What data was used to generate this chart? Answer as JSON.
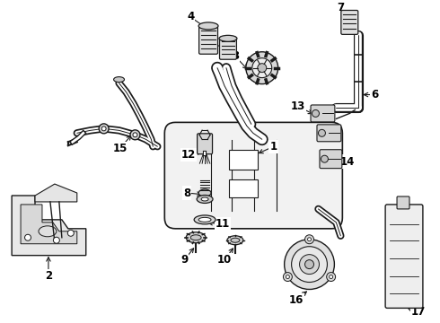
{
  "background_color": "#ffffff",
  "line_color": "#1a1a1a",
  "fig_w": 4.9,
  "fig_h": 3.6,
  "dpi": 100,
  "labels": {
    "1": [
      295,
      178,
      305,
      165
    ],
    "2": [
      72,
      295,
      72,
      308
    ],
    "3": [
      292,
      72,
      278,
      60
    ],
    "4": [
      222,
      25,
      210,
      18
    ],
    "5": [
      240,
      62,
      228,
      55
    ],
    "6": [
      403,
      105,
      415,
      105
    ],
    "7": [
      393,
      18,
      380,
      10
    ],
    "8": [
      228,
      220,
      215,
      215
    ],
    "9": [
      210,
      308,
      198,
      320
    ],
    "10": [
      258,
      308,
      248,
      320
    ],
    "11": [
      232,
      262,
      245,
      255
    ],
    "12": [
      228,
      188,
      215,
      175
    ],
    "13": [
      340,
      128,
      328,
      118
    ],
    "14": [
      368,
      182,
      382,
      178
    ],
    "15": [
      152,
      175,
      140,
      188
    ],
    "16": [
      345,
      318,
      333,
      330
    ],
    "17": [
      438,
      340,
      450,
      345
    ]
  }
}
